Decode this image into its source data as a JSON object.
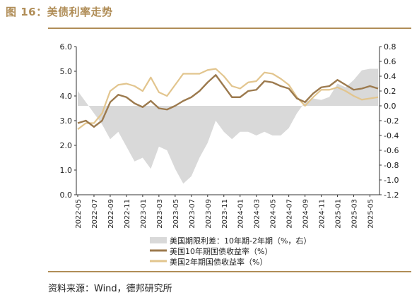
{
  "figure": {
    "title": "图 16：美债利率走势",
    "source": "资料来源：Wind，德邦研究所"
  },
  "colors": {
    "accent": "#b08d57",
    "spread": "#d9d9d9",
    "y10": "#9c7a4e",
    "y2": "#e2c58e"
  },
  "chart_data": {
    "type": "line",
    "title": "",
    "xlabel": "",
    "ylabel": "",
    "ylim": [
      0,
      6
    ],
    "y2lim": [
      -1.2,
      0.8
    ],
    "y_ticks": [
      "0.0",
      "1.0",
      "2.0",
      "3.0",
      "4.0",
      "5.0",
      "6.0"
    ],
    "y2_ticks": [
      "-1.2",
      "-1.0",
      "-0.8",
      "-0.6",
      "-0.4",
      "-0.2",
      "0.0",
      "0.2",
      "0.4",
      "0.6",
      "0.8"
    ],
    "x_ticks": [
      "2022-05",
      "2022-07",
      "2022-09",
      "2022-11",
      "2023-01",
      "2023-03",
      "2023-05",
      "2023-07",
      "2023-09",
      "2023-11",
      "2024-01",
      "2024-03",
      "2024-05",
      "2024-07",
      "2024-09",
      "2024-11",
      "2025-01",
      "2025-03",
      "2025-05"
    ],
    "grid": false,
    "legend_position": "bottom",
    "x": [
      "2022-05",
      "2022-06",
      "2022-07",
      "2022-08",
      "2022-09",
      "2022-10",
      "2022-11",
      "2022-12",
      "2023-01",
      "2023-02",
      "2023-03",
      "2023-04",
      "2023-05",
      "2023-06",
      "2023-07",
      "2023-08",
      "2023-09",
      "2023-10",
      "2023-11",
      "2023-12",
      "2024-01",
      "2024-02",
      "2024-03",
      "2024-04",
      "2024-05",
      "2024-06",
      "2024-07",
      "2024-08",
      "2024-09",
      "2024-10",
      "2024-11",
      "2024-12",
      "2025-01",
      "2025-02",
      "2025-03",
      "2025-04",
      "2025-05",
      "2025-06"
    ],
    "series": [
      {
        "name": "美国期限利差：10年期-2年期（%，右）",
        "axis": "right",
        "type": "area",
        "values": [
          0.2,
          0.05,
          -0.1,
          -0.25,
          -0.45,
          -0.35,
          -0.55,
          -0.75,
          -0.7,
          -0.85,
          -0.55,
          -0.6,
          -0.85,
          -1.05,
          -0.95,
          -0.7,
          -0.5,
          -0.2,
          -0.35,
          -0.45,
          -0.35,
          -0.35,
          -0.4,
          -0.35,
          -0.4,
          -0.4,
          -0.3,
          -0.1,
          0.05,
          0.1,
          0.08,
          0.12,
          0.3,
          0.25,
          0.35,
          0.48,
          0.5,
          0.5
        ]
      },
      {
        "name": "美国10年期国债收益率（%）",
        "axis": "left",
        "type": "line",
        "values": [
          2.9,
          3.0,
          2.75,
          3.0,
          3.75,
          4.05,
          3.95,
          3.7,
          3.55,
          3.8,
          3.5,
          3.45,
          3.6,
          3.8,
          3.95,
          4.2,
          4.55,
          4.85,
          4.4,
          3.95,
          3.95,
          4.2,
          4.25,
          4.6,
          4.55,
          4.4,
          4.3,
          3.9,
          3.75,
          4.1,
          4.35,
          4.4,
          4.65,
          4.45,
          4.25,
          4.3,
          4.4,
          4.3
        ]
      },
      {
        "name": "美国2年期国债收益率（%）",
        "axis": "left",
        "type": "line",
        "values": [
          2.65,
          2.9,
          2.9,
          3.3,
          4.2,
          4.45,
          4.5,
          4.4,
          4.2,
          4.75,
          4.15,
          4.0,
          4.45,
          4.9,
          4.9,
          4.9,
          5.05,
          5.1,
          4.8,
          4.4,
          4.3,
          4.55,
          4.6,
          4.95,
          4.9,
          4.7,
          4.45,
          3.95,
          3.6,
          3.95,
          4.25,
          4.25,
          4.35,
          4.2,
          4.0,
          3.85,
          3.9,
          3.95
        ]
      }
    ]
  }
}
